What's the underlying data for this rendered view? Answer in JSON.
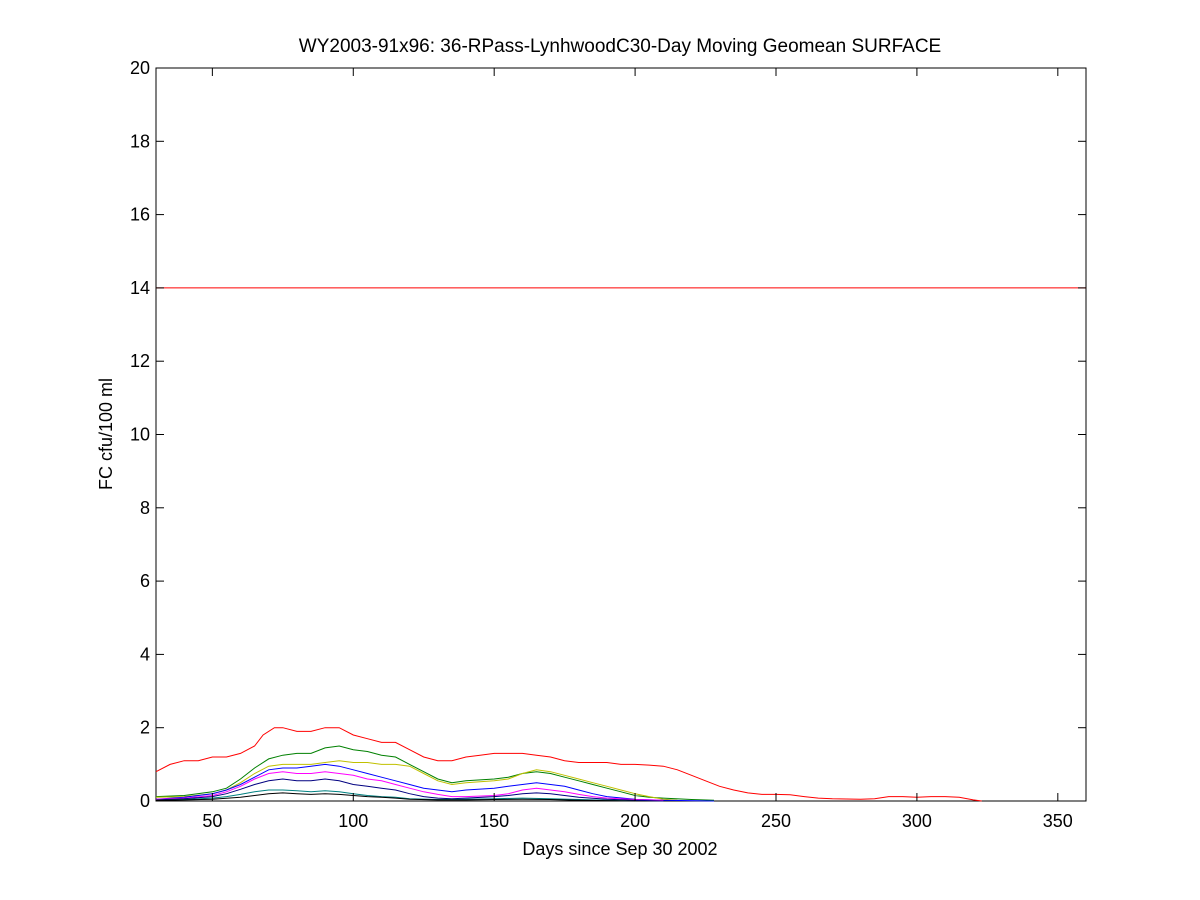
{
  "chart_data": {
    "type": "line",
    "title": "WY2003-91x96: 36-RPass-LynhwoodC30-Day Moving Geomean SURFACE",
    "xlabel": "Days since Sep 30 2002",
    "ylabel": "FC cfu/100 ml",
    "xlim": [
      30,
      360
    ],
    "ylim": [
      0,
      20
    ],
    "xticks": [
      50,
      100,
      150,
      200,
      250,
      300,
      350
    ],
    "yticks": [
      0,
      2,
      4,
      6,
      8,
      10,
      12,
      14,
      16,
      18,
      20
    ],
    "grid": false,
    "legend": "none",
    "reference_line": {
      "y": 14,
      "color": "#ff0000"
    },
    "series": [
      {
        "color": "#ff0000",
        "points": [
          [
            30,
            0.8
          ],
          [
            35,
            1.0
          ],
          [
            40,
            1.1
          ],
          [
            45,
            1.1
          ],
          [
            50,
            1.2
          ],
          [
            55,
            1.2
          ],
          [
            60,
            1.3
          ],
          [
            65,
            1.5
          ],
          [
            68,
            1.8
          ],
          [
            72,
            2.0
          ],
          [
            75,
            2.0
          ],
          [
            80,
            1.9
          ],
          [
            85,
            1.9
          ],
          [
            90,
            2.0
          ],
          [
            95,
            2.0
          ],
          [
            100,
            1.8
          ],
          [
            105,
            1.7
          ],
          [
            110,
            1.6
          ],
          [
            115,
            1.6
          ],
          [
            120,
            1.4
          ],
          [
            125,
            1.2
          ],
          [
            130,
            1.1
          ],
          [
            135,
            1.1
          ],
          [
            140,
            1.2
          ],
          [
            145,
            1.25
          ],
          [
            150,
            1.3
          ],
          [
            155,
            1.3
          ],
          [
            160,
            1.3
          ],
          [
            165,
            1.25
          ],
          [
            170,
            1.2
          ],
          [
            175,
            1.1
          ],
          [
            180,
            1.05
          ],
          [
            185,
            1.05
          ],
          [
            190,
            1.05
          ],
          [
            195,
            1.0
          ],
          [
            200,
            1.0
          ],
          [
            205,
            0.98
          ],
          [
            210,
            0.95
          ],
          [
            215,
            0.85
          ],
          [
            220,
            0.7
          ],
          [
            225,
            0.55
          ],
          [
            230,
            0.4
          ],
          [
            235,
            0.3
          ],
          [
            240,
            0.22
          ],
          [
            245,
            0.18
          ],
          [
            250,
            0.18
          ],
          [
            255,
            0.17
          ],
          [
            260,
            0.12
          ],
          [
            265,
            0.08
          ],
          [
            270,
            0.06
          ],
          [
            280,
            0.05
          ],
          [
            285,
            0.06
          ],
          [
            290,
            0.12
          ],
          [
            295,
            0.12
          ],
          [
            300,
            0.1
          ],
          [
            305,
            0.12
          ],
          [
            310,
            0.12
          ],
          [
            315,
            0.1
          ],
          [
            320,
            0.03
          ],
          [
            323,
            0.0
          ]
        ]
      },
      {
        "color": "#008000",
        "points": [
          [
            30,
            0.12
          ],
          [
            40,
            0.15
          ],
          [
            50,
            0.25
          ],
          [
            55,
            0.35
          ],
          [
            60,
            0.6
          ],
          [
            65,
            0.9
          ],
          [
            70,
            1.15
          ],
          [
            75,
            1.25
          ],
          [
            80,
            1.3
          ],
          [
            85,
            1.3
          ],
          [
            90,
            1.45
          ],
          [
            95,
            1.5
          ],
          [
            100,
            1.4
          ],
          [
            105,
            1.35
          ],
          [
            110,
            1.25
          ],
          [
            115,
            1.2
          ],
          [
            120,
            1.0
          ],
          [
            125,
            0.8
          ],
          [
            130,
            0.6
          ],
          [
            135,
            0.5
          ],
          [
            140,
            0.55
          ],
          [
            150,
            0.6
          ],
          [
            155,
            0.65
          ],
          [
            160,
            0.75
          ],
          [
            165,
            0.8
          ],
          [
            170,
            0.75
          ],
          [
            175,
            0.65
          ],
          [
            180,
            0.55
          ],
          [
            185,
            0.45
          ],
          [
            190,
            0.35
          ],
          [
            195,
            0.25
          ],
          [
            200,
            0.15
          ],
          [
            205,
            0.1
          ],
          [
            210,
            0.08
          ],
          [
            220,
            0.04
          ],
          [
            228,
            0.02
          ]
        ]
      },
      {
        "color": "#c0c000",
        "points": [
          [
            30,
            0.1
          ],
          [
            40,
            0.12
          ],
          [
            50,
            0.2
          ],
          [
            55,
            0.3
          ],
          [
            60,
            0.5
          ],
          [
            65,
            0.75
          ],
          [
            70,
            0.95
          ],
          [
            75,
            1.0
          ],
          [
            80,
            1.0
          ],
          [
            85,
            1.0
          ],
          [
            90,
            1.05
          ],
          [
            95,
            1.1
          ],
          [
            100,
            1.05
          ],
          [
            105,
            1.05
          ],
          [
            110,
            1.0
          ],
          [
            115,
            1.0
          ],
          [
            120,
            0.95
          ],
          [
            125,
            0.75
          ],
          [
            130,
            0.55
          ],
          [
            135,
            0.45
          ],
          [
            140,
            0.5
          ],
          [
            150,
            0.55
          ],
          [
            155,
            0.6
          ],
          [
            160,
            0.75
          ],
          [
            165,
            0.85
          ],
          [
            170,
            0.8
          ],
          [
            175,
            0.7
          ],
          [
            180,
            0.6
          ],
          [
            185,
            0.5
          ],
          [
            190,
            0.4
          ],
          [
            195,
            0.3
          ],
          [
            200,
            0.2
          ],
          [
            205,
            0.12
          ],
          [
            210,
            0.05
          ],
          [
            215,
            0.02
          ]
        ]
      },
      {
        "color": "#0000ff",
        "points": [
          [
            30,
            0.05
          ],
          [
            40,
            0.1
          ],
          [
            50,
            0.2
          ],
          [
            55,
            0.3
          ],
          [
            60,
            0.45
          ],
          [
            65,
            0.65
          ],
          [
            70,
            0.85
          ],
          [
            75,
            0.9
          ],
          [
            80,
            0.9
          ],
          [
            85,
            0.95
          ],
          [
            90,
            1.0
          ],
          [
            95,
            0.95
          ],
          [
            100,
            0.85
          ],
          [
            105,
            0.75
          ],
          [
            110,
            0.65
          ],
          [
            115,
            0.55
          ],
          [
            120,
            0.45
          ],
          [
            125,
            0.35
          ],
          [
            130,
            0.3
          ],
          [
            135,
            0.25
          ],
          [
            140,
            0.3
          ],
          [
            150,
            0.35
          ],
          [
            155,
            0.4
          ],
          [
            160,
            0.45
          ],
          [
            165,
            0.5
          ],
          [
            170,
            0.45
          ],
          [
            175,
            0.4
          ],
          [
            180,
            0.3
          ],
          [
            185,
            0.2
          ],
          [
            190,
            0.12
          ],
          [
            200,
            0.05
          ],
          [
            210,
            0.02
          ],
          [
            228,
            0.0
          ]
        ]
      },
      {
        "color": "#ff00ff",
        "points": [
          [
            30,
            0.05
          ],
          [
            40,
            0.08
          ],
          [
            50,
            0.15
          ],
          [
            55,
            0.25
          ],
          [
            60,
            0.4
          ],
          [
            65,
            0.6
          ],
          [
            70,
            0.75
          ],
          [
            75,
            0.8
          ],
          [
            80,
            0.75
          ],
          [
            85,
            0.75
          ],
          [
            90,
            0.8
          ],
          [
            95,
            0.75
          ],
          [
            100,
            0.7
          ],
          [
            105,
            0.6
          ],
          [
            110,
            0.55
          ],
          [
            115,
            0.45
          ],
          [
            120,
            0.35
          ],
          [
            125,
            0.25
          ],
          [
            130,
            0.18
          ],
          [
            135,
            0.12
          ],
          [
            140,
            0.12
          ],
          [
            150,
            0.15
          ],
          [
            155,
            0.2
          ],
          [
            160,
            0.3
          ],
          [
            165,
            0.35
          ],
          [
            170,
            0.3
          ],
          [
            175,
            0.25
          ],
          [
            180,
            0.18
          ],
          [
            185,
            0.12
          ],
          [
            190,
            0.08
          ],
          [
            200,
            0.04
          ],
          [
            210,
            0.02
          ]
        ]
      },
      {
        "color": "#000080",
        "points": [
          [
            30,
            0.03
          ],
          [
            40,
            0.06
          ],
          [
            50,
            0.12
          ],
          [
            55,
            0.2
          ],
          [
            60,
            0.32
          ],
          [
            65,
            0.45
          ],
          [
            70,
            0.55
          ],
          [
            75,
            0.6
          ],
          [
            80,
            0.55
          ],
          [
            85,
            0.55
          ],
          [
            90,
            0.6
          ],
          [
            95,
            0.55
          ],
          [
            100,
            0.45
          ],
          [
            105,
            0.4
          ],
          [
            110,
            0.35
          ],
          [
            115,
            0.3
          ],
          [
            120,
            0.2
          ],
          [
            125,
            0.12
          ],
          [
            130,
            0.08
          ],
          [
            135,
            0.06
          ],
          [
            140,
            0.08
          ],
          [
            150,
            0.12
          ],
          [
            155,
            0.15
          ],
          [
            160,
            0.2
          ],
          [
            165,
            0.22
          ],
          [
            170,
            0.2
          ],
          [
            175,
            0.15
          ],
          [
            180,
            0.1
          ],
          [
            190,
            0.05
          ],
          [
            200,
            0.02
          ],
          [
            210,
            0.0
          ]
        ]
      },
      {
        "color": "#008080",
        "points": [
          [
            30,
            0.02
          ],
          [
            40,
            0.04
          ],
          [
            50,
            0.08
          ],
          [
            55,
            0.12
          ],
          [
            60,
            0.18
          ],
          [
            65,
            0.25
          ],
          [
            70,
            0.3
          ],
          [
            75,
            0.3
          ],
          [
            80,
            0.28
          ],
          [
            85,
            0.25
          ],
          [
            90,
            0.28
          ],
          [
            95,
            0.25
          ],
          [
            100,
            0.2
          ],
          [
            105,
            0.15
          ],
          [
            110,
            0.12
          ],
          [
            115,
            0.1
          ],
          [
            120,
            0.06
          ],
          [
            130,
            0.04
          ],
          [
            140,
            0.05
          ],
          [
            150,
            0.06
          ],
          [
            160,
            0.08
          ],
          [
            170,
            0.06
          ],
          [
            180,
            0.04
          ],
          [
            190,
            0.02
          ],
          [
            200,
            0.0
          ]
        ]
      },
      {
        "color": "#000000",
        "points": [
          [
            30,
            0.02
          ],
          [
            40,
            0.03
          ],
          [
            50,
            0.05
          ],
          [
            60,
            0.1
          ],
          [
            65,
            0.15
          ],
          [
            70,
            0.2
          ],
          [
            75,
            0.22
          ],
          [
            80,
            0.2
          ],
          [
            85,
            0.18
          ],
          [
            90,
            0.2
          ],
          [
            95,
            0.18
          ],
          [
            100,
            0.15
          ],
          [
            105,
            0.12
          ],
          [
            110,
            0.1
          ],
          [
            115,
            0.08
          ],
          [
            120,
            0.05
          ],
          [
            130,
            0.03
          ],
          [
            140,
            0.03
          ],
          [
            150,
            0.04
          ],
          [
            160,
            0.05
          ],
          [
            170,
            0.04
          ],
          [
            180,
            0.02
          ],
          [
            190,
            0.01
          ],
          [
            200,
            0.0
          ]
        ]
      }
    ]
  }
}
